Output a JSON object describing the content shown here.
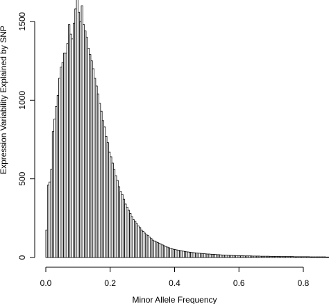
{
  "chart_data": {
    "type": "bar",
    "title": "",
    "xlabel": "Minor Allele Frequency",
    "ylabel": "Expression Variability Explained by SNP",
    "xlim": [
      0,
      0.9
    ],
    "ylim": [
      0,
      1650
    ],
    "xticks": [
      "0.0",
      "0.2",
      "0.4",
      "0.6",
      "0.8"
    ],
    "xtick_values": [
      0,
      0.2,
      0.4,
      0.6,
      0.8
    ],
    "yticks": [
      "0",
      "500",
      "1000",
      "1500"
    ],
    "ytick_values": [
      0,
      500,
      1000,
      1500
    ],
    "bin_start": 0,
    "bin_width": 0.005,
    "values": [
      175,
      460,
      480,
      560,
      800,
      880,
      960,
      1030,
      1140,
      1210,
      1240,
      1300,
      1300,
      1360,
      1480,
      1420,
      1390,
      1490,
      1580,
      1650,
      1560,
      1500,
      1600,
      1480,
      1440,
      1400,
      1330,
      1290,
      1250,
      1200,
      1140,
      1090,
      1040,
      980,
      930,
      870,
      830,
      770,
      730,
      670,
      640,
      600,
      560,
      520,
      490,
      450,
      420,
      400,
      370,
      340,
      320,
      300,
      280,
      260,
      240,
      230,
      215,
      200,
      190,
      175,
      165,
      155,
      145,
      140,
      130,
      120,
      110,
      105,
      100,
      95,
      90,
      85,
      80,
      75,
      70,
      66,
      62,
      58,
      55,
      52,
      50,
      48,
      46,
      44,
      42,
      40,
      38,
      36,
      35,
      33,
      32,
      31,
      30,
      29,
      28,
      27,
      26,
      25,
      24,
      23,
      22,
      22,
      21,
      20,
      20,
      19,
      18,
      18,
      17,
      16,
      16,
      15,
      15,
      14,
      14,
      13,
      13,
      12,
      12,
      12,
      11,
      11,
      11,
      10,
      10,
      10,
      10,
      10,
      9,
      9,
      9,
      9,
      9,
      8,
      8,
      8,
      8,
      8,
      8,
      7,
      7,
      7,
      7,
      7,
      7,
      6,
      6,
      6,
      6,
      6,
      6,
      6,
      6,
      6,
      5,
      5,
      5,
      5,
      5,
      5,
      5,
      5,
      5,
      5,
      4,
      4,
      4,
      4,
      4,
      4,
      4,
      4,
      4,
      4,
      3,
      3,
      3,
      3,
      3
    ],
    "grid": false,
    "legend": "none"
  }
}
